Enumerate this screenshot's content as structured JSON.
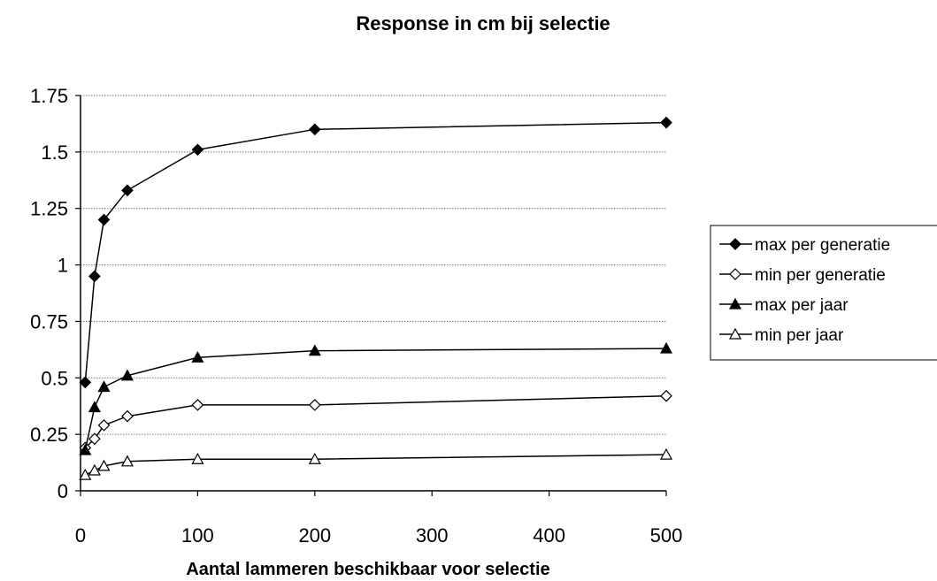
{
  "chart_data": {
    "type": "line",
    "title": "Response in cm bij selectie",
    "xlabel": "Aantal lammeren beschikbaar voor selectie",
    "ylabel": "",
    "xlim": [
      0,
      500
    ],
    "ylim": [
      0,
      1.75
    ],
    "x_ticks": [
      {
        "value": 0,
        "label": "0"
      },
      {
        "value": 100,
        "label": "100"
      },
      {
        "value": 200,
        "label": "200"
      },
      {
        "value": 300,
        "label": "300"
      },
      {
        "value": 400,
        "label": "400"
      },
      {
        "value": 500,
        "label": "500"
      }
    ],
    "y_ticks": [
      {
        "value": 0,
        "label": "0"
      },
      {
        "value": 0.25,
        "label": "0.25"
      },
      {
        "value": 0.5,
        "label": "0.5"
      },
      {
        "value": 0.75,
        "label": "0.75"
      },
      {
        "value": 1,
        "label": "1"
      },
      {
        "value": 1.25,
        "label": "1.25"
      },
      {
        "value": 1.5,
        "label": "1.5"
      },
      {
        "value": 1.75,
        "label": "1.75"
      }
    ],
    "grid": "horizontal",
    "legend_position": "right",
    "x": [
      4,
      12,
      20,
      40,
      100,
      200,
      500
    ],
    "series": [
      {
        "name": "max per generatie",
        "marker": "diamond",
        "filled": true,
        "values": [
          0.48,
          0.95,
          1.2,
          1.33,
          1.51,
          1.6,
          1.63
        ]
      },
      {
        "name": "min per generatie",
        "marker": "diamond",
        "filled": false,
        "values": [
          0.19,
          0.23,
          0.29,
          0.33,
          0.38,
          0.38,
          0.42
        ]
      },
      {
        "name": "max per jaar",
        "marker": "triangle",
        "filled": true,
        "values": [
          0.18,
          0.37,
          0.46,
          0.51,
          0.59,
          0.62,
          0.63
        ]
      },
      {
        "name": "min per jaar",
        "marker": "triangle",
        "filled": false,
        "values": [
          0.07,
          0.09,
          0.11,
          0.13,
          0.14,
          0.14,
          0.16
        ]
      }
    ]
  }
}
